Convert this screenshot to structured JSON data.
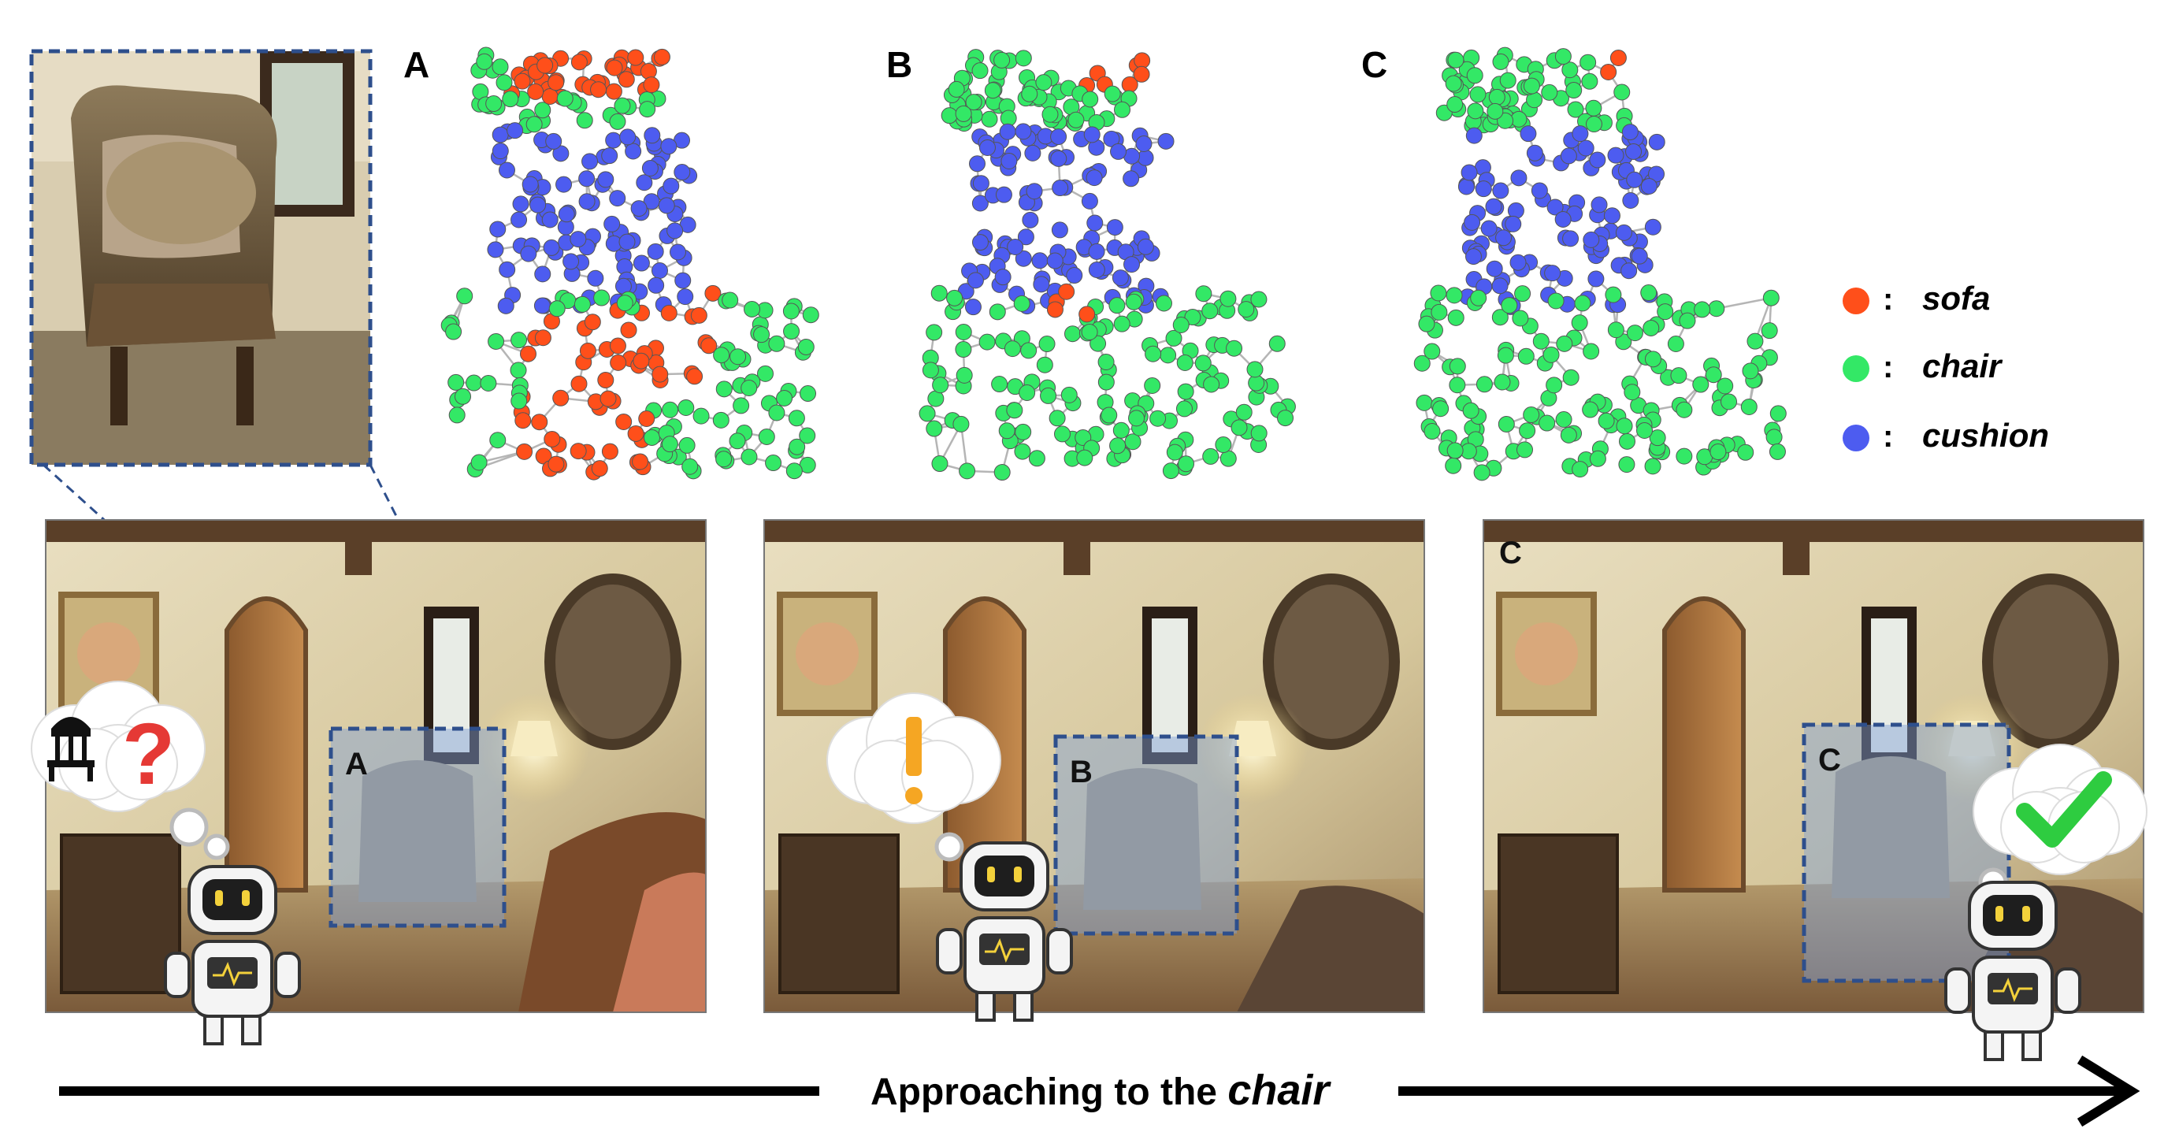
{
  "point_clouds": [
    {
      "label": "A"
    },
    {
      "label": "B"
    },
    {
      "label": "C"
    }
  ],
  "legend": [
    {
      "label": "sofa",
      "color": "#ff4f1a",
      "separator": ":"
    },
    {
      "label": "chair",
      "color": "#33e866",
      "separator": ":"
    },
    {
      "label": "cushion",
      "color": "#4d5cf0",
      "separator": ":"
    }
  ],
  "frames": [
    {
      "box_label": "A",
      "thought": "chair-icon-and-question-mark"
    },
    {
      "box_label": "B",
      "thought": "exclamation-mark"
    },
    {
      "box_label": "C",
      "corner_label": "C",
      "thought": "check-mark"
    }
  ],
  "timeline": {
    "caption_prefix": "Approaching to the ",
    "caption_emphasis": "chair"
  },
  "colors": {
    "sofa": "#ff4f1a",
    "chair": "#33e866",
    "cushion": "#4d5cf0",
    "box": "#2e4f8c",
    "question": "#e53935",
    "exclamation": "#f5a623",
    "check": "#2ecc40"
  }
}
